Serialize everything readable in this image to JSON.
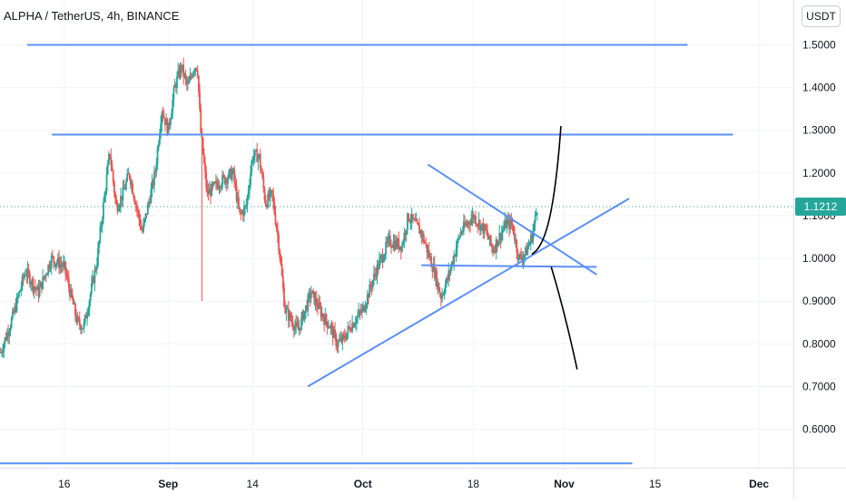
{
  "header": {
    "symbol_title": "ALPHA / TetherUS, 4h, BINANCE",
    "currency_button": "USDT"
  },
  "colors": {
    "up_candle": "#26a69a",
    "down_candle": "#ef5350",
    "trend_lines": "#5b8ff9",
    "projection_curve": "#000000",
    "last_price_label": "#26a69a",
    "grid": "#f0f3fa"
  },
  "chart_data": {
    "type": "candlestick",
    "title": "ALPHA / TetherUS, 4h, BINANCE",
    "y_axis": {
      "ticks": [
        "1.5000",
        "1.4000",
        "1.3000",
        "1.2000",
        "1.1000",
        "1.0000",
        "0.9000",
        "0.8000",
        "0.7000",
        "0.6000"
      ],
      "tick_values": [
        1.5,
        1.4,
        1.3,
        1.2,
        1.1,
        1.0,
        0.9,
        0.8,
        0.7,
        0.6
      ],
      "range": [
        0.51,
        1.605
      ]
    },
    "x_axis": {
      "ticks": [
        {
          "label": "16",
          "bold": false
        },
        {
          "label": "Sep",
          "bold": true
        },
        {
          "label": "14",
          "bold": false
        },
        {
          "label": "Oct",
          "bold": true
        },
        {
          "label": "18",
          "bold": false
        },
        {
          "label": "Nov",
          "bold": true
        },
        {
          "label": "15",
          "bold": false
        },
        {
          "label": "Dec",
          "bold": true
        }
      ],
      "tick_days": [
        16,
        32,
        45,
        62,
        79,
        93,
        107,
        123
      ],
      "range": [
        6.1,
        128.3
      ],
      "note_day_units": "day index counted from Aug 1"
    },
    "last_price": {
      "value": 1.1212,
      "label": "1.1212"
    },
    "price_path": [
      [
        6.2,
        0.78
      ],
      [
        8,
        0.86
      ],
      [
        10,
        0.97
      ],
      [
        12,
        0.92
      ],
      [
        14,
        1.0
      ],
      [
        16,
        0.98
      ],
      [
        18,
        0.85
      ],
      [
        19,
        0.84
      ],
      [
        21,
        0.99
      ],
      [
        23,
        1.25
      ],
      [
        24,
        1.12
      ],
      [
        25,
        1.15
      ],
      [
        26,
        1.2
      ],
      [
        28,
        1.06
      ],
      [
        30,
        1.2
      ],
      [
        31,
        1.35
      ],
      [
        32,
        1.3
      ],
      [
        33,
        1.4
      ],
      [
        34,
        1.45
      ],
      [
        35,
        1.4
      ],
      [
        36,
        1.45
      ],
      [
        36.5,
        1.45
      ],
      [
        37,
        1.3
      ],
      [
        38,
        1.15
      ],
      [
        40,
        1.18
      ],
      [
        42,
        1.2
      ],
      [
        43,
        1.1
      ],
      [
        44,
        1.12
      ],
      [
        45,
        1.24
      ],
      [
        46,
        1.24
      ],
      [
        47,
        1.13
      ],
      [
        48,
        1.15
      ],
      [
        49,
        1.04
      ],
      [
        50,
        0.88
      ],
      [
        52,
        0.83
      ],
      [
        54,
        0.92
      ],
      [
        56,
        0.86
      ],
      [
        57,
        0.84
      ],
      [
        58,
        0.8
      ],
      [
        59,
        0.81
      ],
      [
        60,
        0.84
      ],
      [
        62,
        0.88
      ],
      [
        64,
        0.97
      ],
      [
        66,
        1.04
      ],
      [
        68,
        1.03
      ],
      [
        69,
        1.1
      ],
      [
        71,
        1.06
      ],
      [
        73,
        0.97
      ],
      [
        74,
        0.91
      ],
      [
        75,
        0.95
      ],
      [
        77,
        1.06
      ],
      [
        79,
        1.1
      ],
      [
        81,
        1.06
      ],
      [
        82,
        1.02
      ],
      [
        84,
        1.08
      ],
      [
        85,
        1.08
      ],
      [
        86,
        1.0
      ],
      [
        87,
        1.01
      ],
      [
        88,
        1.05
      ],
      [
        89,
        1.13
      ]
    ],
    "drawings": [
      {
        "name": "resistance-line-1.5",
        "x": [
          10.3,
          112
        ],
        "y": [
          1.5,
          1.5
        ]
      },
      {
        "name": "resistance-line-1.29",
        "x": [
          14.1,
          119
        ],
        "y": [
          1.29,
          1.29
        ]
      },
      {
        "name": "support-line-0.52",
        "x": [
          6.1,
          103.5
        ],
        "y": [
          0.52,
          0.52
        ]
      },
      {
        "name": "ascending-trendline",
        "x": [
          53.5,
          103
        ],
        "y": [
          0.7,
          1.14
        ]
      },
      {
        "name": "descending-trendline",
        "x": [
          72,
          98
        ],
        "y": [
          1.22,
          0.962
        ]
      },
      {
        "name": "horizontal-support-0.98",
        "x": [
          71,
          98
        ],
        "y": [
          0.984,
          0.98
        ]
      }
    ],
    "projections": [
      {
        "name": "bullish-projection-curve",
        "points": [
          [
            88,
            1.01
          ],
          [
            90,
            1.025
          ],
          [
            91.5,
            1.1
          ],
          [
            92.5,
            1.31
          ]
        ]
      },
      {
        "name": "bearish-projection-curve",
        "points": [
          [
            91,
            0.98
          ],
          [
            93,
            0.88
          ],
          [
            95,
            0.74
          ]
        ]
      }
    ]
  }
}
